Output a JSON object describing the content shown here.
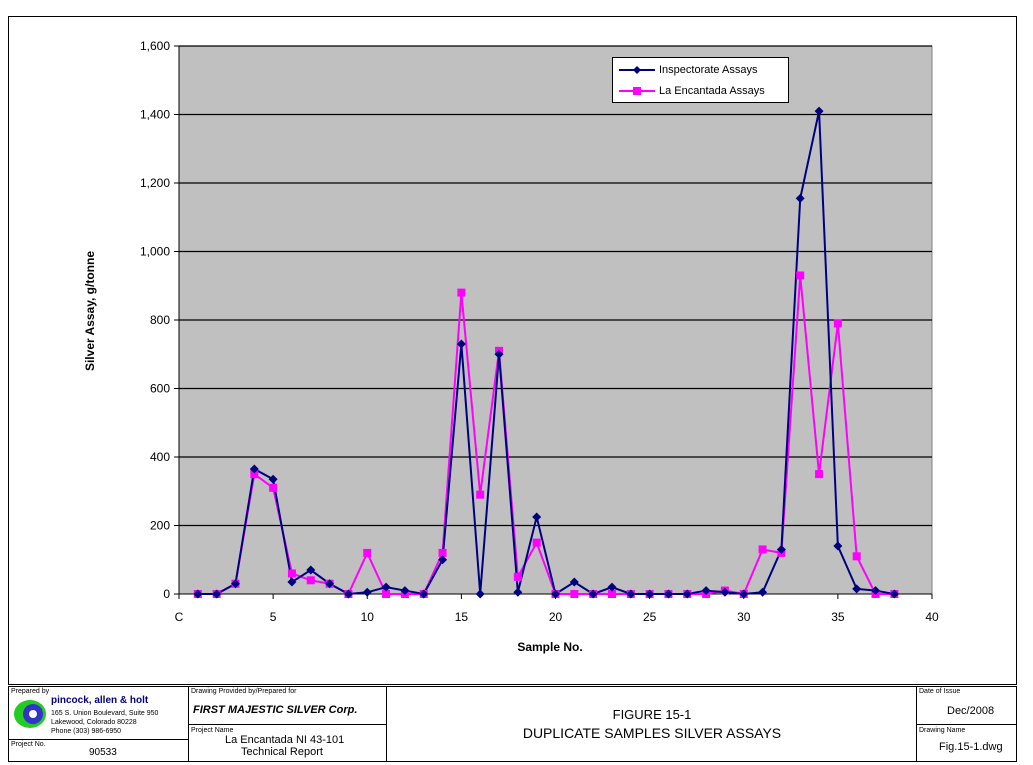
{
  "chart_data": {
    "type": "line",
    "xlabel": "Sample No.",
    "ylabel": "Silver Assay,  g/tonne",
    "xlim": [
      0,
      40
    ],
    "ylim": [
      0,
      1600
    ],
    "x_ticks": [
      "C",
      "5",
      "10",
      "15",
      "20",
      "25",
      "30",
      "35",
      "40"
    ],
    "y_ticks": [
      "0",
      "200",
      "400",
      "600",
      "800",
      "1,000",
      "1,200",
      "1,400",
      "1,600"
    ],
    "grid": "horizontal",
    "legend_position": "top-right",
    "x": [
      1,
      2,
      3,
      4,
      5,
      6,
      7,
      8,
      9,
      10,
      11,
      12,
      13,
      14,
      15,
      16,
      17,
      18,
      19,
      20,
      21,
      22,
      23,
      24,
      25,
      26,
      27,
      28,
      29,
      30,
      31,
      32,
      33,
      34,
      35,
      36,
      37,
      38
    ],
    "series": [
      {
        "name": "Inspectorate Assays",
        "color": "#000080",
        "marker": "diamond",
        "values": [
          0,
          0,
          30,
          365,
          335,
          35,
          70,
          30,
          0,
          5,
          20,
          10,
          0,
          100,
          730,
          0,
          700,
          5,
          225,
          0,
          35,
          0,
          20,
          0,
          0,
          0,
          0,
          10,
          5,
          0,
          5,
          130,
          1155,
          1410,
          140,
          15,
          10,
          0
        ]
      },
      {
        "name": "La Encantada Assays",
        "color": "#ff00ff",
        "marker": "square",
        "values": [
          0,
          0,
          30,
          350,
          310,
          60,
          40,
          30,
          0,
          120,
          0,
          0,
          0,
          120,
          880,
          290,
          710,
          50,
          150,
          0,
          0,
          0,
          0,
          0,
          0,
          0,
          0,
          0,
          10,
          0,
          130,
          120,
          930,
          350,
          790,
          110,
          0,
          0
        ]
      }
    ]
  },
  "title_block": {
    "prepared_by_label": "Prepared by",
    "company_name": "pincock, allen & holt",
    "address_1": "165 S. Union Boulevard, Suite 950",
    "address_2": "Lakewood, Colorado 80228",
    "phone": "Phone (303) 986-6950",
    "project_no_label": "Project No.",
    "project_no": "90533",
    "drawing_provided_label": "Drawing Provided by/Prepared for",
    "client": "FIRST MAJESTIC SILVER Corp.",
    "project_name_label": "Project Name",
    "project_name_1": "La Encantada NI 43-101",
    "project_name_2": "Technical Report",
    "figure_number": "FIGURE 15-1",
    "figure_title": "DUPLICATE SAMPLES SILVER ASSAYS",
    "date_label": "Date of Issue",
    "date": "Dec/2008",
    "drawing_name_label": "Drawing Name",
    "drawing_name": "Fig.15-1.dwg"
  }
}
